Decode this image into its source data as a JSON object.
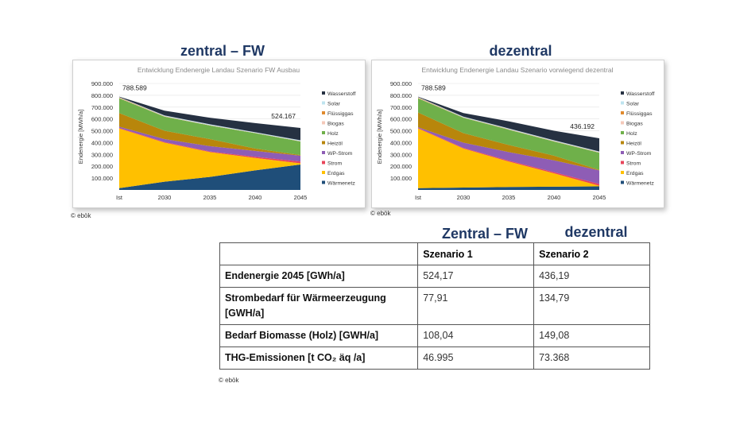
{
  "headings": {
    "left": "zentral – FW",
    "right": "dezentral"
  },
  "copyright": "© ebök",
  "table": {
    "top_headings": [
      "Zentral – FW",
      "dezentral"
    ],
    "columns": [
      "",
      "Szenario 1",
      "Szenario 2"
    ],
    "rows": [
      {
        "label": "Endenergie 2045 [GWh/a]",
        "s1": "524,17",
        "s2": "436,19"
      },
      {
        "label": "Strombedarf für Wärmeerzeugung [GWH/a]",
        "s1": "77,91",
        "s2": "134,79"
      },
      {
        "label": "Bedarf Biomasse (Holz) [GWH/a]",
        "s1": "108,04",
        "s2": "149,08"
      },
      {
        "label": "THG-Emissionen [t CO₂ äq /a]",
        "s1": "46.995",
        "s2": "73.368"
      }
    ]
  },
  "chart_data": [
    {
      "type": "area",
      "stacked": true,
      "title": "Entwicklung Endenergie Landau Szenario FW Ausbau",
      "xlabel": "",
      "ylabel": "Endenergie [MWh/a]",
      "categories": [
        "Ist",
        "2030",
        "2035",
        "2040",
        "2045"
      ],
      "ylim": [
        0,
        900000
      ],
      "yticks": [
        "100.000",
        "200.000",
        "300.000",
        "400.000",
        "500.000",
        "600.000",
        "700.000",
        "800.000",
        "900.000"
      ],
      "annotations": [
        {
          "category": "Ist",
          "text": "788.589"
        },
        {
          "category": "2045",
          "text": "524.167"
        }
      ],
      "legend_position": "right",
      "series": [
        {
          "name": "Wärmenetz",
          "color": "#1f4e79",
          "values": [
            15000,
            70000,
            110000,
            165000,
            215000
          ]
        },
        {
          "name": "Erdgas",
          "color": "#ffc000",
          "values": [
            505000,
            330000,
            210000,
            105000,
            10000
          ]
        },
        {
          "name": "Strom",
          "color": "#e8445a",
          "values": [
            5000,
            5000,
            5000,
            10000,
            15000
          ]
        },
        {
          "name": "WP-Strom",
          "color": "#8e5db5",
          "values": [
            10000,
            25000,
            45000,
            50000,
            50000
          ]
        },
        {
          "name": "Heizöl",
          "color": "#b8860b",
          "values": [
            115000,
            70000,
            60000,
            20000,
            5000
          ]
        },
        {
          "name": "Holz",
          "color": "#6fb04a",
          "values": [
            125000,
            120000,
            115000,
            130000,
            115000
          ]
        },
        {
          "name": "Biogas",
          "color": "#f4c9b9",
          "values": [
            3000,
            2000,
            2000,
            2000,
            2000
          ]
        },
        {
          "name": "Flüssiggas",
          "color": "#e08a2e",
          "values": [
            4000,
            2000,
            1000,
            1000,
            1000
          ]
        },
        {
          "name": "Solar",
          "color": "#bfe4ef",
          "values": [
            3000,
            6000,
            7000,
            5000,
            7000
          ]
        },
        {
          "name": "Wasserstoff",
          "color": "#263142",
          "values": [
            3589,
            40000,
            55000,
            77000,
            104167
          ]
        }
      ]
    },
    {
      "type": "area",
      "stacked": true,
      "title": "Entwicklung Endenergie Landau Szenario vorwiegend dezentral",
      "xlabel": "",
      "ylabel": "Endenergie [MWh/a]",
      "categories": [
        "Ist",
        "2030",
        "2035",
        "2040",
        "2045"
      ],
      "ylim": [
        0,
        900000
      ],
      "yticks": [
        "100.000",
        "200.000",
        "300.000",
        "400.000",
        "500.000",
        "600.000",
        "700.000",
        "800.000",
        "900.000"
      ],
      "annotations": [
        {
          "category": "Ist",
          "text": "788.589"
        },
        {
          "category": "2045",
          "text": "436.192"
        }
      ],
      "legend_position": "right",
      "series": [
        {
          "name": "Wärmenetz",
          "color": "#1f4e79",
          "values": [
            15000,
            20000,
            25000,
            28000,
            30000
          ]
        },
        {
          "name": "Erdgas",
          "color": "#ffc000",
          "values": [
            505000,
            330000,
            215000,
            112000,
            5000
          ]
        },
        {
          "name": "Strom",
          "color": "#e8445a",
          "values": [
            5000,
            5000,
            8000,
            10000,
            15000
          ]
        },
        {
          "name": "WP-Strom",
          "color": "#8e5db5",
          "values": [
            5000,
            45000,
            72000,
            100000,
            115000
          ]
        },
        {
          "name": "Heizöl",
          "color": "#b8860b",
          "values": [
            125000,
            80000,
            60000,
            40000,
            5000
          ]
        },
        {
          "name": "Holz",
          "color": "#6fb04a",
          "values": [
            120000,
            130000,
            130000,
            120000,
            145000
          ]
        },
        {
          "name": "Biogas",
          "color": "#f4c9b9",
          "values": [
            3000,
            2000,
            2000,
            2000,
            2000
          ]
        },
        {
          "name": "Flüssiggas",
          "color": "#e08a2e",
          "values": [
            4000,
            2000,
            2000,
            2000,
            2000
          ]
        },
        {
          "name": "Solar",
          "color": "#bfe4ef",
          "values": [
            3000,
            6000,
            6000,
            6000,
            6000
          ]
        },
        {
          "name": "Wasserstoff",
          "color": "#263142",
          "values": [
            3589,
            30000,
            60000,
            80000,
            111192
          ]
        }
      ]
    }
  ]
}
